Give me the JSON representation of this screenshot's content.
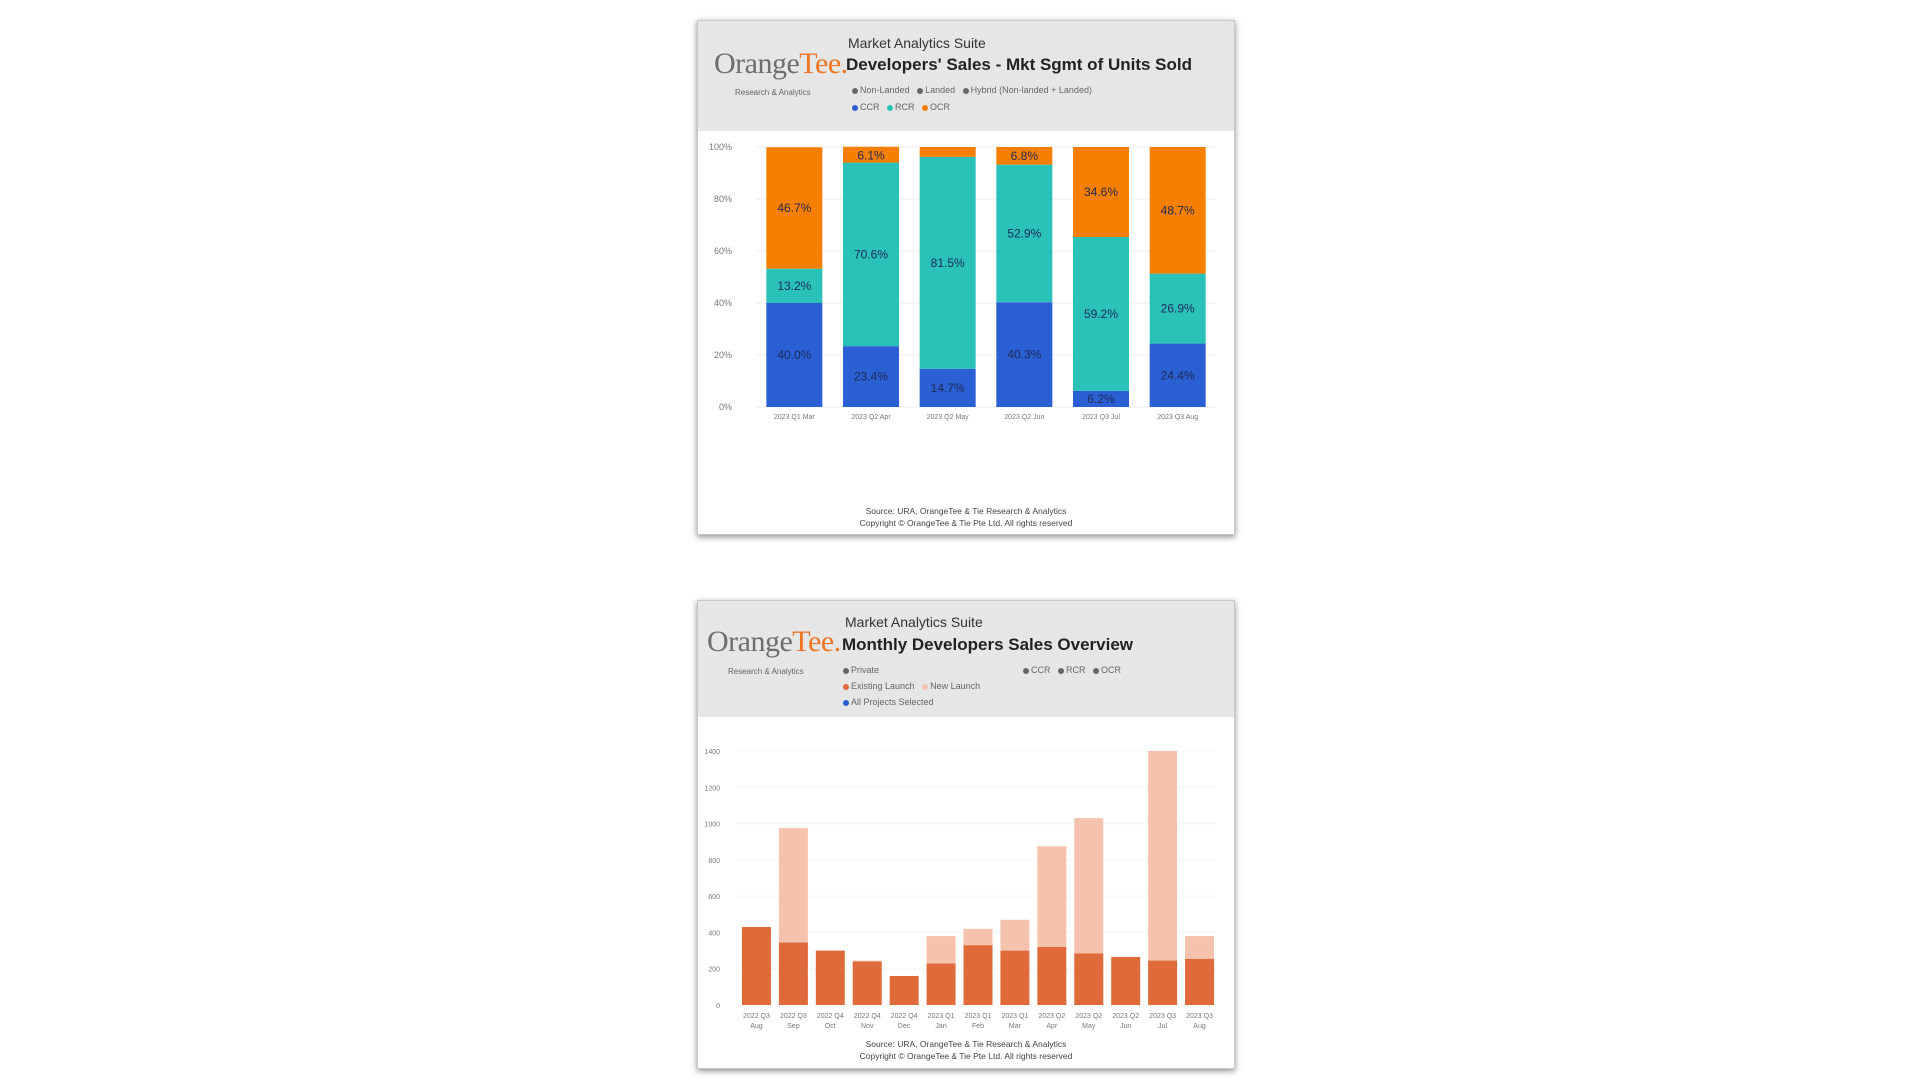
{
  "app": {
    "suite": "Market Analytics Suite",
    "brand_main": "Orange",
    "brand_accent": "Tee",
    "brand_suffix": ".",
    "brand_sub": "Research & Analytics"
  },
  "chart1": {
    "title": "Developers' Sales - Mkt Sgmt of Units Sold",
    "legend_filters": [
      {
        "label": "Non-Landed",
        "color": "#666666"
      },
      {
        "label": "Landed",
        "color": "#666666"
      },
      {
        "label": "Hybrid (Non-landed + Landed)",
        "color": "#666666"
      }
    ],
    "legend_series": [
      {
        "label": "CCR",
        "color": "#2b5fd4"
      },
      {
        "label": "RCR",
        "color": "#29c1b8"
      },
      {
        "label": "OCR",
        "color": "#f77f00"
      }
    ],
    "source": "Source: URA, OrangeTee & Tie Research & Analytics",
    "copyright": "Copyright © OrangeTee & Tie Pte Ltd. All rights reserved"
  },
  "chart2": {
    "title": "Monthly Developers Sales Overview",
    "legend_filters": [
      {
        "label": "Private",
        "color": "#666666"
      }
    ],
    "legend_segments": [
      {
        "label": "CCR",
        "color": "#666666"
      },
      {
        "label": "RCR",
        "color": "#666666"
      },
      {
        "label": "OCR",
        "color": "#666666"
      }
    ],
    "legend_series": [
      {
        "label": "Existing Launch",
        "color": "#e06b3a"
      },
      {
        "label": "New Launch",
        "color": "#f5c3ad"
      }
    ],
    "legend_projects": {
      "label": "All Projects Selected",
      "color": "#2b5fd4"
    },
    "source": "Source: URA, OrangeTee & Tie Research & Analytics",
    "copyright": "Copyright © OrangeTee & Tie Pte Ltd. All rights reserved"
  },
  "chart_data": [
    {
      "type": "bar",
      "stacked": "percent",
      "title": "Developers' Sales - Mkt Sgmt of Units Sold",
      "categories": [
        "2023 Q1 Mar",
        "2023 Q2 Apr",
        "2023 Q2 May",
        "2023 Q2 Jun",
        "2023 Q3 Jul",
        "2023 Q3 Aug"
      ],
      "series": [
        {
          "name": "CCR",
          "color": "#2b5fd4",
          "values": [
            40.0,
            23.4,
            14.7,
            40.3,
            6.2,
            24.4
          ],
          "labels": [
            "40.0%",
            "23.4%",
            "14.7%",
            "40.3%",
            "6.2%",
            "24.4%"
          ]
        },
        {
          "name": "RCR",
          "color": "#29c1b8",
          "values": [
            13.2,
            70.6,
            81.5,
            52.9,
            59.2,
            26.9
          ],
          "labels": [
            "13.2%",
            "70.6%",
            "81.5%",
            "52.9%",
            "59.2%",
            "26.9%"
          ]
        },
        {
          "name": "OCR",
          "color": "#f77f00",
          "values": [
            46.7,
            6.1,
            3.8,
            6.8,
            34.6,
            48.7
          ],
          "labels": [
            "46.7%",
            "6.1%",
            "",
            "6.8%",
            "34.6%",
            "48.7%"
          ]
        }
      ],
      "ylim": [
        0,
        100
      ],
      "yticks": [
        "0%",
        "20%",
        "40%",
        "60%",
        "80%",
        "100%"
      ],
      "grid": true
    },
    {
      "type": "bar",
      "stacked": true,
      "title": "Monthly Developers Sales Overview",
      "categories": [
        [
          "2022 Q3",
          "Aug"
        ],
        [
          "2022 Q3",
          "Sep"
        ],
        [
          "2022 Q4",
          "Oct"
        ],
        [
          "2022 Q4",
          "Nov"
        ],
        [
          "2022 Q4",
          "Dec"
        ],
        [
          "2023 Q1",
          "Jan"
        ],
        [
          "2023 Q1",
          "Feb"
        ],
        [
          "2023 Q1",
          "Mar"
        ],
        [
          "2023 Q2",
          "Apr"
        ],
        [
          "2023 Q2",
          "May"
        ],
        [
          "2023 Q2",
          "Jun"
        ],
        [
          "2023 Q3",
          "Jul"
        ],
        [
          "2023 Q3",
          "Aug"
        ]
      ],
      "series": [
        {
          "name": "Existing Launch",
          "color": "#e06b3a",
          "values": [
            430,
            345,
            300,
            240,
            160,
            230,
            330,
            300,
            320,
            285,
            265,
            245,
            255
          ]
        },
        {
          "name": "New Launch",
          "color": "#f5c3ad",
          "values": [
            0,
            630,
            0,
            5,
            0,
            150,
            90,
            170,
            555,
            745,
            0,
            1155,
            125
          ]
        }
      ],
      "ylim": [
        0,
        1400
      ],
      "yticks": [
        "0",
        "200",
        "400",
        "600",
        "800",
        "1000",
        "1200",
        "1400"
      ],
      "grid": true
    }
  ]
}
